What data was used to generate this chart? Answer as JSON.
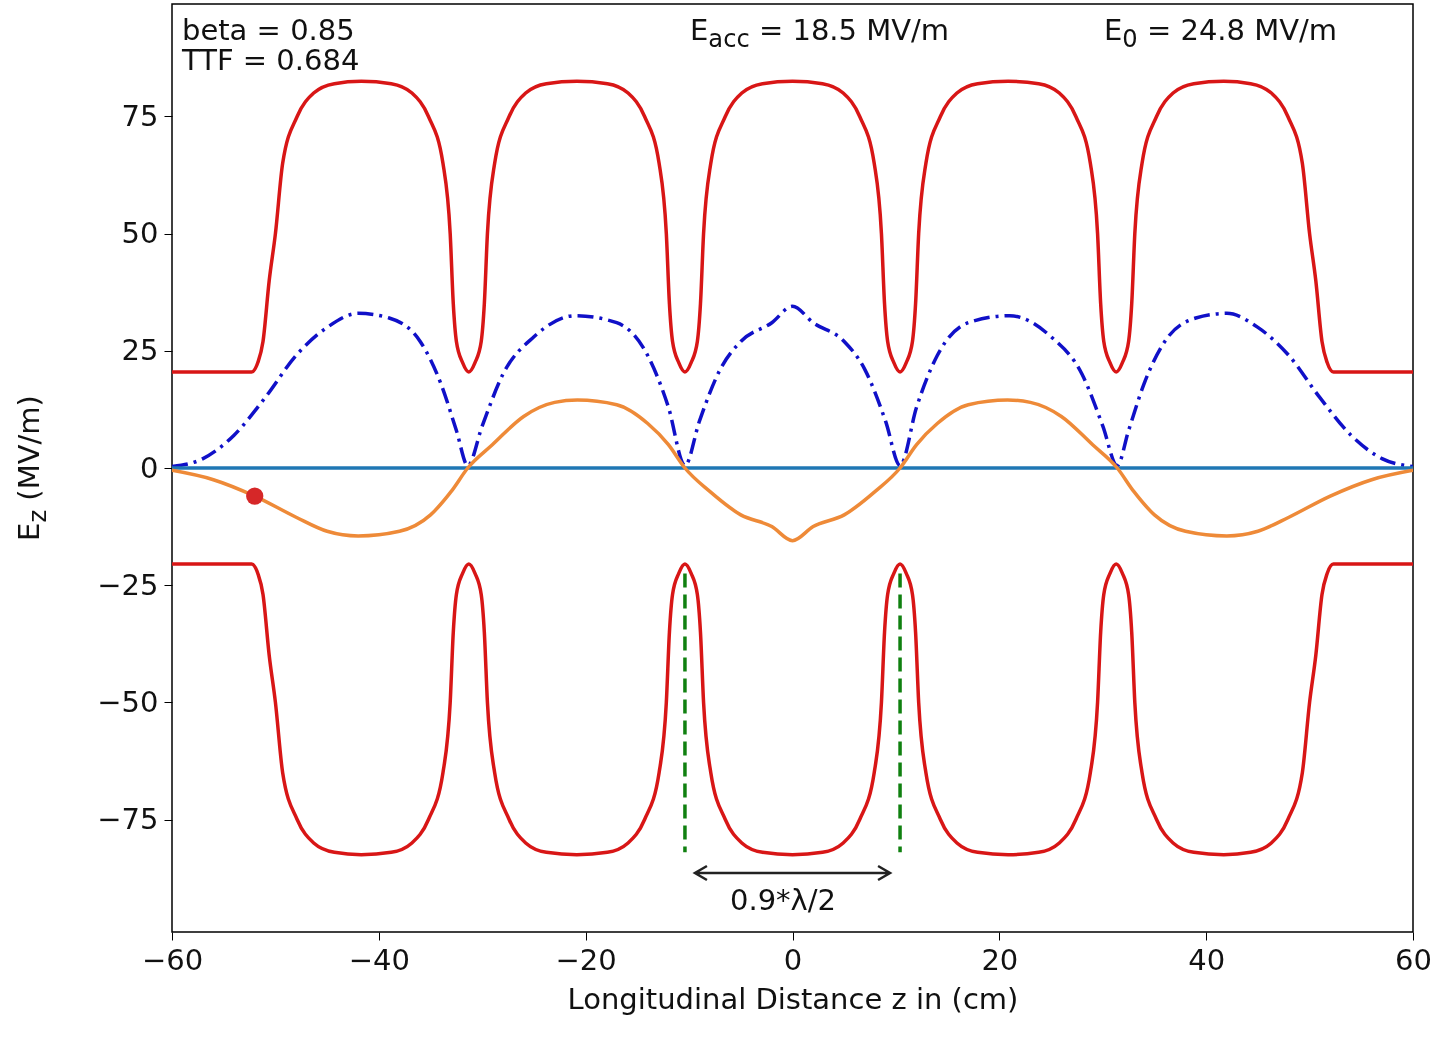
{
  "chart_data": {
    "type": "line",
    "xlabel": "Longitudinal Distance z in (cm)",
    "ylabel": "E$_{z}$ (MV/m)",
    "xlim": [
      -60,
      60
    ],
    "xticks": [
      -60,
      -40,
      -20,
      0,
      20,
      40,
      60
    ],
    "ylim": [
      -99,
      99
    ],
    "yticks": [
      -75,
      -50,
      -25,
      0,
      25,
      50,
      75
    ],
    "x": [
      -60,
      -52.3,
      -51.7,
      -51.2,
      -50.6,
      -50.0,
      -49.3,
      -47.9,
      -46.3,
      -44.3,
      -41.7,
      -38.8,
      -36.8,
      -35.2,
      -33.8,
      -33.1,
      -32.8,
      -32.5,
      -31.9,
      -31.3,
      -30.7,
      -30.1,
      -29.8,
      -29.5,
      -28.8,
      -27.4,
      -25.8,
      -23.8,
      -20.85,
      -17.9,
      -15.9,
      -14.3,
      -12.9,
      -12.2,
      -11.9,
      -11.6,
      -11.0,
      -10.4,
      -9.8,
      -9.2,
      -8.9,
      -8.6,
      -7.9,
      -6.5,
      -4.9,
      -2.9,
      0,
      2.9,
      4.9,
      6.5,
      7.9,
      8.6,
      8.9,
      9.2,
      9.8,
      10.4,
      11.0,
      11.6,
      11.9,
      12.2,
      12.9,
      14.3,
      15.9,
      17.9,
      20.85,
      23.8,
      25.8,
      27.4,
      28.8,
      29.5,
      29.8,
      30.1,
      30.7,
      31.3,
      31.9,
      32.5,
      32.8,
      33.1,
      33.8,
      35.2,
      36.8,
      38.8,
      41.7,
      44.3,
      46.3,
      47.9,
      49.3,
      50.0,
      50.6,
      51.2,
      51.7,
      52.3,
      60
    ],
    "series": [
      {
        "color": "#d81616",
        "values": [
          20.5,
          20.5,
          22.5,
          27,
          40,
          50,
          65,
          75,
          80,
          82,
          82.5,
          82,
          80,
          75,
          65,
          50,
          35,
          27,
          22.5,
          20.5,
          22.5,
          27,
          35,
          50,
          65,
          75,
          80,
          82,
          82.5,
          82,
          80,
          75,
          65,
          50,
          35,
          27,
          22.5,
          20.5,
          22.5,
          27,
          35,
          50,
          65,
          75,
          80,
          82,
          82.5,
          82,
          80,
          75,
          65,
          50,
          35,
          27,
          22.5,
          20.5,
          22.5,
          27,
          35,
          50,
          65,
          75,
          80,
          82,
          82.5,
          82,
          80,
          75,
          65,
          50,
          35,
          27,
          22.5,
          20.5,
          22.5,
          27,
          35,
          50,
          65,
          75,
          80,
          82,
          82.5,
          82,
          80,
          75,
          65,
          50,
          40,
          27,
          22.5,
          20.5,
          20.5
        ]
      },
      {
        "color": "#d81616",
        "values": [
          -20.5,
          -20.5,
          -22.5,
          -27,
          -40,
          -50,
          -65,
          -75,
          -80,
          -82,
          -82.5,
          -82,
          -80,
          -75,
          -65,
          -50,
          -35,
          -27,
          -22.5,
          -20.5,
          -22.5,
          -27,
          -35,
          -50,
          -65,
          -75,
          -80,
          -82,
          -82.5,
          -82,
          -80,
          -75,
          -65,
          -50,
          -35,
          -27,
          -22.5,
          -20.5,
          -22.5,
          -27,
          -35,
          -50,
          -65,
          -75,
          -80,
          -82,
          -82.5,
          -82,
          -80,
          -75,
          -65,
          -50,
          -35,
          -27,
          -22.5,
          -20.5,
          -22.5,
          -27,
          -35,
          -50,
          -65,
          -75,
          -80,
          -82,
          -82.5,
          -82,
          -80,
          -75,
          -65,
          -50,
          -35,
          -27,
          -22.5,
          -20.5,
          -22.5,
          -27,
          -35,
          -50,
          -65,
          -75,
          -80,
          -82,
          -82.5,
          -82,
          -80,
          -75,
          -65,
          -50,
          -40,
          -27,
          -22.5,
          -20.5,
          -20.5
        ]
      },
      {
        "color": "#1010c8",
        "line_style": "dashdot",
        "x": [
          -60,
          -57,
          -54,
          -51,
          -48,
          -45,
          -42,
          -39,
          -36,
          -34,
          -32.5,
          -31.4,
          -30,
          -28,
          -25,
          -21,
          -17,
          -14,
          -12,
          -10.4,
          -9,
          -7,
          -5,
          -2,
          0,
          2,
          5,
          7,
          9,
          10.4,
          12,
          14,
          17,
          21,
          25,
          28,
          30,
          31.4,
          32.5,
          34,
          36,
          39,
          42,
          45,
          48,
          51,
          54,
          57,
          60
        ],
        "values": [
          0.3,
          2,
          7,
          15,
          24,
          30,
          33,
          32,
          27,
          18,
          8,
          0.5,
          9,
          20,
          28,
          32.5,
          31,
          24,
          13,
          0.5,
          10,
          21,
          27,
          31,
          34.5,
          31,
          27,
          21,
          10,
          0.5,
          13,
          24,
          31,
          32.5,
          28,
          20,
          9,
          0.5,
          8,
          18,
          27,
          32,
          33,
          30,
          24,
          15,
          7,
          2,
          0.3
        ]
      },
      {
        "color": "#1f77b4",
        "x": [
          -60,
          60
        ],
        "values": [
          0,
          0
        ]
      },
      {
        "color": "#ee8a38",
        "x": [
          -60,
          -56,
          -52,
          -48,
          -45,
          -42,
          -38,
          -35,
          -33,
          -31.4,
          -29,
          -26,
          -23,
          -20.8,
          -17,
          -14,
          -12,
          -10.4,
          -8,
          -5,
          -2,
          0,
          2,
          5,
          8,
          10.4,
          12,
          14,
          17,
          20.8,
          23,
          26,
          29,
          31.4,
          33,
          35,
          38,
          42,
          45,
          48,
          52,
          56,
          60
        ],
        "values": [
          -0.5,
          -2.5,
          -6,
          -10.5,
          -13.5,
          -14.5,
          -13.5,
          -10,
          -5,
          0,
          5,
          11,
          14,
          14.5,
          13.5,
          9.5,
          5,
          0,
          -5,
          -10,
          -12.5,
          -15.5,
          -12.5,
          -10,
          -5,
          0,
          5,
          9.5,
          13.5,
          14.5,
          14,
          11,
          5,
          0,
          -5,
          -10,
          -13.5,
          -14.5,
          -13.5,
          -10.5,
          -6,
          -2.5,
          -0.5
        ]
      },
      {
        "color": "#108010",
        "line_style": "dashed",
        "x": [
          -10.4,
          -10.4
        ],
        "values": [
          -22.5,
          -82
        ]
      },
      {
        "color": "#108010",
        "line_style": "dashed",
        "x": [
          10.4,
          10.4
        ],
        "values": [
          -22.5,
          -82
        ]
      },
      {
        "type": "scatter",
        "marker": "circle",
        "color": "#d62728",
        "x": [
          -52
        ],
        "values": [
          -6
        ]
      }
    ],
    "annotations": [
      "beta = 0.85",
      "TTF = 0.684",
      "E$_{acc}$ = 18.5 MV/m",
      "E$_{0}$ = 24.8 MV/m",
      "0.9*λ/2"
    ],
    "grid": false
  }
}
